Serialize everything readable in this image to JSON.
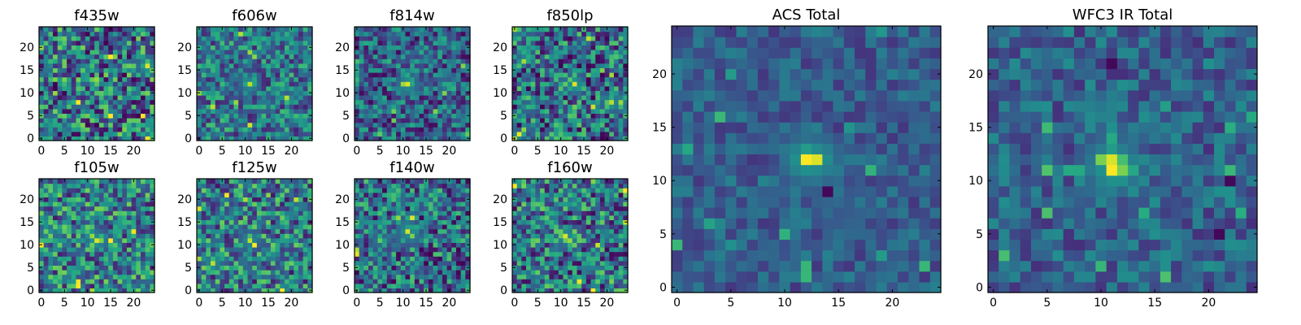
{
  "chart_data": [
    {
      "type": "heatmap",
      "title": "f435w",
      "xlim": [
        -0.5,
        24.5
      ],
      "ylim": [
        -0.5,
        24.5
      ],
      "xticks": [
        0,
        5,
        10,
        15,
        20
      ],
      "yticks": [
        0,
        5,
        10,
        15,
        20
      ],
      "grid": false,
      "colormap": "viridis",
      "hotspots": [
        {
          "x": 23,
          "y": 16,
          "value": 0.95
        }
      ]
    },
    {
      "type": "heatmap",
      "title": "f606w",
      "xlim": [
        -0.5,
        24.5
      ],
      "ylim": [
        -0.5,
        24.5
      ],
      "xticks": [
        0,
        5,
        10,
        15,
        20
      ],
      "yticks": [
        0,
        5,
        10,
        15,
        20
      ],
      "grid": false,
      "colormap": "viridis",
      "hotspots": [
        {
          "x": 11,
          "y": 12,
          "value": 0.9
        },
        {
          "x": 10,
          "y": 12,
          "value": 0.6
        }
      ]
    },
    {
      "type": "heatmap",
      "title": "f814w",
      "xlim": [
        -0.5,
        24.5
      ],
      "ylim": [
        -0.5,
        24.5
      ],
      "xticks": [
        0,
        5,
        10,
        15,
        20
      ],
      "yticks": [
        0,
        5,
        10,
        15,
        20
      ],
      "grid": false,
      "colormap": "viridis",
      "hotspots": [
        {
          "x": 11,
          "y": 12,
          "value": 0.95
        },
        {
          "x": 12,
          "y": 12,
          "value": 0.6
        }
      ]
    },
    {
      "type": "heatmap",
      "title": "f850lp",
      "xlim": [
        -0.5,
        24.5
      ],
      "ylim": [
        -0.5,
        24.5
      ],
      "xticks": [
        0,
        5,
        10,
        15,
        20
      ],
      "yticks": [
        0,
        5,
        10,
        15,
        20
      ],
      "grid": false,
      "colormap": "viridis",
      "hotspots": [
        {
          "x": 13,
          "y": 12,
          "value": 0.95
        },
        {
          "x": 11,
          "y": 12,
          "value": 0.75
        },
        {
          "x": 21,
          "y": 8,
          "value": 0.9
        },
        {
          "x": 23,
          "y": 8,
          "value": 0.85
        },
        {
          "x": 0,
          "y": 24,
          "value": 0.85
        },
        {
          "x": 0,
          "y": 0,
          "value": 0.9
        }
      ]
    },
    {
      "type": "heatmap",
      "title": "f105w",
      "xlim": [
        -0.5,
        24.5
      ],
      "ylim": [
        -0.5,
        24.5
      ],
      "xticks": [
        0,
        5,
        10,
        15,
        20
      ],
      "yticks": [
        0,
        5,
        10,
        15,
        20
      ],
      "grid": false,
      "colormap": "viridis",
      "hotspots": [
        {
          "x": 12,
          "y": 11,
          "value": 0.95
        },
        {
          "x": 11,
          "y": 12,
          "value": 0.85
        },
        {
          "x": 13,
          "y": 11,
          "value": 0.8
        },
        {
          "x": 10,
          "y": 13,
          "value": 0.7
        }
      ]
    },
    {
      "type": "heatmap",
      "title": "f125w",
      "xlim": [
        -0.5,
        24.5
      ],
      "ylim": [
        -0.5,
        24.5
      ],
      "xticks": [
        0,
        5,
        10,
        15,
        20
      ],
      "yticks": [
        0,
        5,
        10,
        15,
        20
      ],
      "grid": false,
      "colormap": "viridis",
      "hotspots": [
        {
          "x": 11,
          "y": 11,
          "value": 0.9
        },
        {
          "x": 3,
          "y": 6,
          "value": 0.9
        },
        {
          "x": 11,
          "y": 12,
          "value": 0.7
        }
      ]
    },
    {
      "type": "heatmap",
      "title": "f140w",
      "xlim": [
        -0.5,
        24.5
      ],
      "ylim": [
        -0.5,
        24.5
      ],
      "xticks": [
        0,
        5,
        10,
        15,
        20
      ],
      "yticks": [
        0,
        5,
        10,
        15,
        20
      ],
      "grid": false,
      "colormap": "viridis",
      "hotspots": [
        {
          "x": 11,
          "y": 13,
          "value": 0.95
        },
        {
          "x": 12,
          "y": 12,
          "value": 0.8
        },
        {
          "x": 5,
          "y": 11,
          "value": 0.75
        },
        {
          "x": 16,
          "y": 19,
          "value": 0.7
        }
      ]
    },
    {
      "type": "heatmap",
      "title": "f160w",
      "xlim": [
        -0.5,
        24.5
      ],
      "ylim": [
        -0.5,
        24.5
      ],
      "xticks": [
        0,
        5,
        10,
        15,
        20
      ],
      "yticks": [
        0,
        5,
        10,
        15,
        20
      ],
      "grid": false,
      "colormap": "viridis",
      "hotspots": [
        {
          "x": 11,
          "y": 12,
          "value": 0.95
        },
        {
          "x": 12,
          "y": 11,
          "value": 0.85
        },
        {
          "x": 13,
          "y": 12,
          "value": 0.6
        }
      ]
    },
    {
      "type": "heatmap",
      "title": "ACS Total",
      "xlim": [
        -0.5,
        24.5
      ],
      "ylim": [
        -0.5,
        24.5
      ],
      "xticks": [
        0,
        5,
        10,
        15,
        20
      ],
      "yticks": [
        0,
        5,
        10,
        15,
        20
      ],
      "grid": false,
      "colormap": "viridis",
      "hotspots": [
        {
          "x": 12,
          "y": 12,
          "value": 1.0
        },
        {
          "x": 13,
          "y": 12,
          "value": 0.95
        },
        {
          "x": 12,
          "y": 13,
          "value": 0.55
        },
        {
          "x": 5,
          "y": 10,
          "value": 0.45
        }
      ],
      "coldspots": [
        {
          "x": 14,
          "y": 9
        }
      ]
    },
    {
      "type": "heatmap",
      "title": "WFC3 IR Total",
      "xlim": [
        -0.5,
        24.5
      ],
      "ylim": [
        -0.5,
        24.5
      ],
      "xticks": [
        0,
        5,
        10,
        15,
        20
      ],
      "yticks": [
        0,
        5,
        10,
        15,
        20
      ],
      "grid": false,
      "colormap": "viridis",
      "hotspots": [
        {
          "x": 11,
          "y": 11,
          "value": 1.0
        },
        {
          "x": 11,
          "y": 12,
          "value": 0.95
        },
        {
          "x": 10,
          "y": 12,
          "value": 0.8
        },
        {
          "x": 12,
          "y": 11,
          "value": 0.8
        },
        {
          "x": 12,
          "y": 12,
          "value": 0.7
        },
        {
          "x": 13,
          "y": 11,
          "value": 0.6
        },
        {
          "x": 11,
          "y": 13,
          "value": 0.55
        },
        {
          "x": 12,
          "y": 10,
          "value": 0.5
        }
      ],
      "coldspots": [
        {
          "x": 22,
          "y": 10
        },
        {
          "x": 21,
          "y": 5
        },
        {
          "x": 11,
          "y": 21
        }
      ]
    }
  ]
}
